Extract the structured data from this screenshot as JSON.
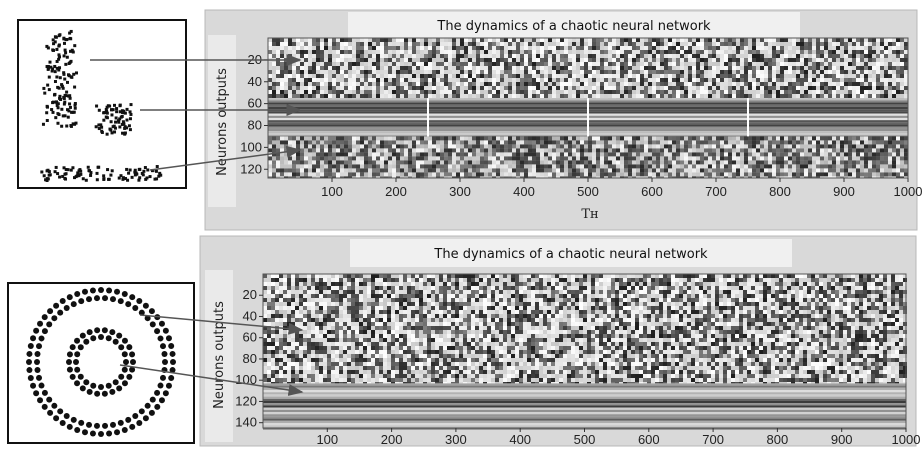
{
  "figure": {
    "panels": [
      {
        "title": "The dynamics of a chaotic neural network",
        "ylabel": "Neurons outputs",
        "xlabel": "Tн",
        "x_ticks": [
          "100",
          "200",
          "300",
          "400",
          "500",
          "600",
          "700",
          "800",
          "900",
          "1000"
        ],
        "y_ticks": [
          "20",
          "40",
          "60",
          "80",
          "100",
          "120"
        ],
        "input_pattern": "scattered clusters",
        "colors": {
          "frame": "#b8b8b8",
          "panel_bg": "#d9d9d9",
          "title_bg": "#f0f0f0",
          "arrow": "#555555"
        }
      },
      {
        "title": "The dynamics of a chaotic neural network",
        "ylabel": "Neurons outputs",
        "xlabel": "",
        "x_ticks": [
          "100",
          "200",
          "300",
          "400",
          "500",
          "600",
          "700",
          "800",
          "900",
          "1000"
        ],
        "y_ticks": [
          "20",
          "40",
          "60",
          "80",
          "100",
          "120",
          "140"
        ],
        "input_pattern": "two concentric rings",
        "colors": {
          "frame": "#b8b8b8",
          "panel_bg": "#d9d9d9",
          "title_bg": "#f0f0f0",
          "arrow": "#555555"
        }
      }
    ]
  },
  "chart_data": [
    {
      "type": "heatmap",
      "title": "The dynamics of a chaotic neural network",
      "xlabel": "Tн",
      "ylabel": "Neurons outputs",
      "xlim": [
        0,
        1000
      ],
      "ylim": [
        0,
        128
      ],
      "x_ticks": [
        100,
        200,
        300,
        400,
        500,
        600,
        700,
        800,
        900,
        1000
      ],
      "y_ticks": [
        20,
        40,
        60,
        80,
        100,
        120
      ],
      "bands": [
        {
          "neurons": [
            0,
            55
          ],
          "texture": "chaotic"
        },
        {
          "neurons": [
            55,
            90
          ],
          "texture": "synchronized-stripes"
        },
        {
          "neurons": [
            90,
            128
          ],
          "texture": "chaotic-dark"
        }
      ],
      "phase_breaks": [
        250,
        500,
        750
      ]
    },
    {
      "type": "heatmap",
      "title": "The dynamics of a chaotic neural network",
      "xlabel": "",
      "ylabel": "Neurons outputs",
      "xlim": [
        0,
        1000
      ],
      "ylim": [
        0,
        145
      ],
      "x_ticks": [
        100,
        200,
        300,
        400,
        500,
        600,
        700,
        800,
        900,
        1000
      ],
      "y_ticks": [
        20,
        40,
        60,
        80,
        100,
        120,
        140
      ],
      "bands": [
        {
          "neurons": [
            0,
            103
          ],
          "texture": "chaotic"
        },
        {
          "neurons": [
            103,
            145
          ],
          "texture": "synchronized-stripes"
        }
      ],
      "phase_breaks": []
    }
  ]
}
